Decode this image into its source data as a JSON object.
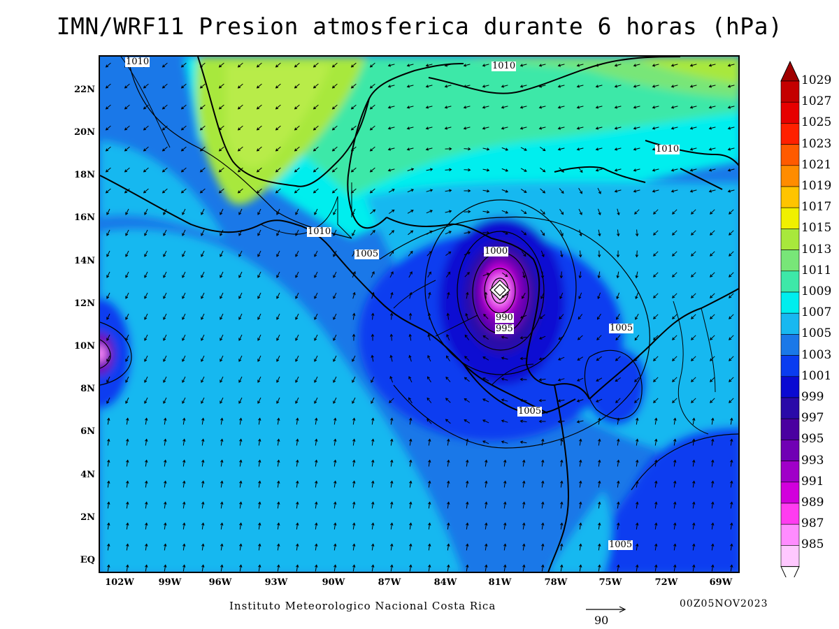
{
  "title": "IMN/WRF11 Presion atmosferica durante 6 horas (hPa)",
  "footer": {
    "credit": "Instituto Meteorologico Nacional Costa Rica",
    "timestamp": "00Z05NOV2023",
    "vector_scale": "90"
  },
  "map": {
    "lat_labels": [
      "22N",
      "20N",
      "18N",
      "16N",
      "14N",
      "12N",
      "10N",
      "8N",
      "6N",
      "4N",
      "2N",
      "EQ"
    ],
    "lon_labels": [
      "102W",
      "99W",
      "96W",
      "93W",
      "90W",
      "87W",
      "84W",
      "81W",
      "78W",
      "75W",
      "72W",
      "69W"
    ],
    "contour_labels": [
      "1010",
      "1010",
      "1010",
      "1010",
      "1005",
      "1000",
      "990",
      "995",
      "1005",
      "1005",
      "1005"
    ],
    "low_center_marker": "low-pressure-center"
  },
  "legend": {
    "levels": [
      "1029",
      "1027",
      "1025",
      "1023",
      "1021",
      "1019",
      "1017",
      "1015",
      "1013",
      "1011",
      "1009",
      "1007",
      "1005",
      "1003",
      "1001",
      "999",
      "997",
      "995",
      "993",
      "991",
      "989",
      "987",
      "985"
    ],
    "colors": [
      "#a00000",
      "#c40000",
      "#e60000",
      "#ff2000",
      "#ff5a00",
      "#ff8c00",
      "#ffc400",
      "#f0f000",
      "#a8e83c",
      "#78e678",
      "#3ee8a8",
      "#00eeee",
      "#18b8f0",
      "#1a78e8",
      "#0a3cf0",
      "#0a0ad2",
      "#2a0aa8",
      "#4a00a0",
      "#7000b4",
      "#a000c8",
      "#d200dc",
      "#ff3cf0",
      "#ff8cff",
      "#ffc8ff"
    ]
  }
}
